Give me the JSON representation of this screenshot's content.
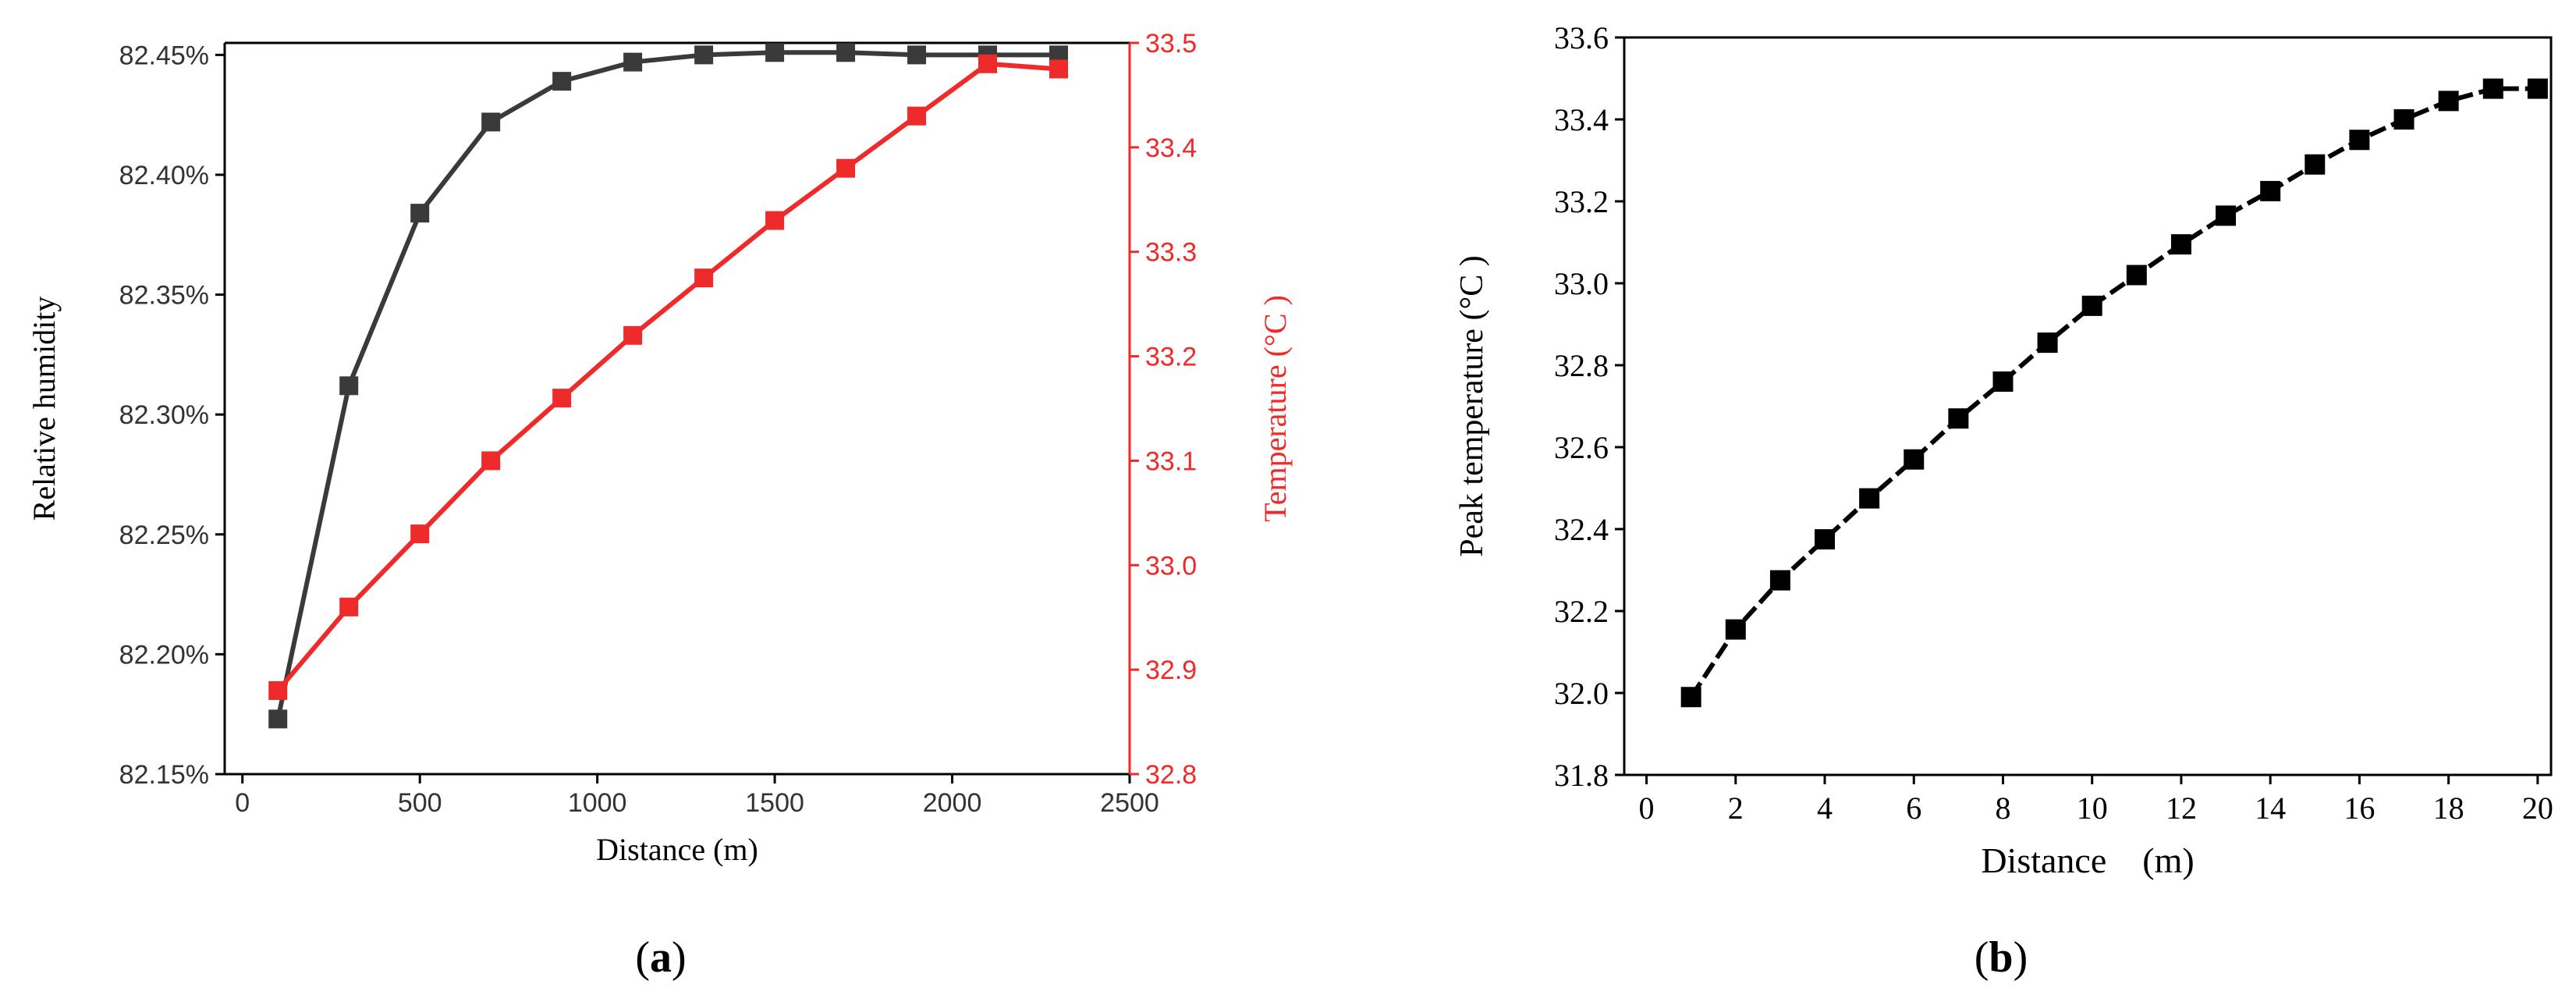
{
  "colors": {
    "humidity": "#3a3a3a",
    "temperature": "#ee2a2a",
    "peak": "#000000"
  },
  "panels": {
    "a": {
      "label": "(a)",
      "label_letter": "a"
    },
    "b": {
      "label": "(b)",
      "label_letter": "b"
    }
  },
  "chart_data": [
    {
      "id": "a",
      "type": "line",
      "xlabel": "Distance (m)",
      "ylabel": "Relative humidity",
      "y2label": "Temperature (°C )",
      "xlim": [
        -50,
        2500
      ],
      "ylim": [
        82.15,
        82.455
      ],
      "y2lim": [
        32.8,
        33.5
      ],
      "xticks": [
        0,
        500,
        1000,
        1500,
        2000,
        2500
      ],
      "yticks": [
        82.15,
        82.2,
        82.25,
        82.3,
        82.35,
        82.4,
        82.45
      ],
      "ytick_labels": [
        "82.15%",
        "82.20%",
        "82.25%",
        "82.30%",
        "82.35%",
        "82.40%",
        "82.45%"
      ],
      "y2ticks": [
        32.8,
        32.9,
        33.0,
        33.1,
        33.2,
        33.3,
        33.4,
        33.5
      ],
      "y2tick_labels": [
        "32.8",
        "32.9",
        "33.0",
        "33.1",
        "33.2",
        "33.3",
        "33.4",
        "33.5"
      ],
      "grid": false,
      "series": [
        {
          "axis": "left",
          "marker": "square",
          "x": [
            100,
            300,
            500,
            700,
            900,
            1100,
            1300,
            1500,
            1700,
            1900,
            2100,
            2300
          ],
          "values": [
            82.173,
            82.312,
            82.384,
            82.422,
            82.439,
            82.447,
            82.45,
            82.451,
            82.451,
            82.45,
            82.45,
            82.45
          ]
        },
        {
          "axis": "right",
          "marker": "square",
          "x": [
            100,
            300,
            500,
            700,
            900,
            1100,
            1300,
            1500,
            1700,
            1900,
            2100,
            2300
          ],
          "values": [
            32.88,
            32.96,
            33.03,
            33.1,
            33.16,
            33.22,
            33.275,
            33.33,
            33.38,
            33.43,
            33.48,
            33.475
          ]
        }
      ]
    },
    {
      "id": "b",
      "type": "line",
      "xlabel": "Distance　(m)",
      "ylabel": "Peak temperature (°C )",
      "xlim": [
        -0.5,
        20.3
      ],
      "ylim": [
        31.8,
        33.6
      ],
      "xticks": [
        0,
        2,
        4,
        6,
        8,
        10,
        12,
        14,
        16,
        18,
        20
      ],
      "yticks": [
        31.8,
        32.0,
        32.2,
        32.4,
        32.6,
        32.8,
        33.0,
        33.2,
        33.4,
        33.6
      ],
      "ytick_labels": [
        "31.8",
        "32.0",
        "32.2",
        "32.4",
        "32.6",
        "32.8",
        "33.0",
        "33.2",
        "33.4",
        "33.6"
      ],
      "grid": false,
      "series": [
        {
          "axis": "left",
          "marker": "square",
          "x": [
            1,
            2,
            3,
            4,
            5,
            6,
            7,
            8,
            9,
            10,
            11,
            12,
            13,
            14,
            15,
            16,
            17,
            18,
            19,
            20
          ],
          "values": [
            31.99,
            32.155,
            32.275,
            32.375,
            32.475,
            32.57,
            32.67,
            32.76,
            32.855,
            32.945,
            33.02,
            33.095,
            33.165,
            33.225,
            33.29,
            33.35,
            33.4,
            33.445,
            33.475,
            33.475
          ]
        }
      ]
    }
  ]
}
